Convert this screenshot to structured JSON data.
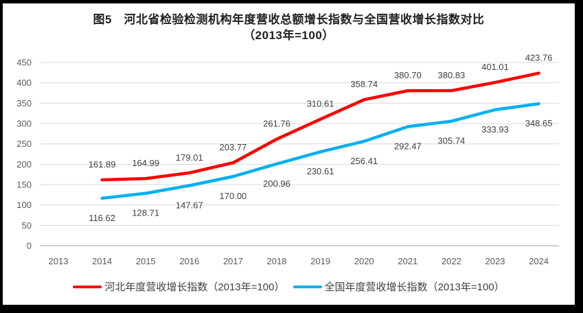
{
  "title": {
    "line1": "图5　河北省检验检测机构年度营收总额增长指数与全国营收增长指数对比",
    "line2": "（2013年=100）"
  },
  "colors": {
    "hebei_line": "#ff0000",
    "national_line": "#00b0f0",
    "gridline": "#d9d9d9",
    "axis_line": "#bfbfbf",
    "axis_label": "#595959",
    "data_label": "#3f3f3f"
  },
  "chart_data": {
    "type": "line",
    "title": "图5 河北省检验检测机构年度营收总额增长指数与全国营收增长指数对比（2013年=100）",
    "categories": [
      "2013",
      "2014",
      "2015",
      "2016",
      "2017",
      "2018",
      "2019",
      "2020",
      "2021",
      "2022",
      "2023",
      "2024"
    ],
    "yticks": [
      0,
      50,
      100,
      150,
      200,
      250,
      300,
      350,
      400,
      450
    ],
    "ylim": [
      0,
      450
    ],
    "grid": true,
    "legend_position": "bottom",
    "series": [
      {
        "id": "hebei",
        "name": "河北年度营收增长指数（2013年=100）",
        "color": "#ff0000",
        "start_year": "2014",
        "label_position": "above",
        "values": [
          161.89,
          164.99,
          179.01,
          203.77,
          261.76,
          310.61,
          358.74,
          380.7,
          380.83,
          401.01,
          423.76
        ],
        "labels": [
          "161.89",
          "164.99",
          "179.01",
          "203.77",
          "261.76",
          "310.61",
          "358.74",
          "380.70",
          "380.83",
          "401.01",
          "423.76"
        ]
      },
      {
        "id": "national",
        "name": "全国年度营收增长指数（2013年=100）",
        "color": "#00b0f0",
        "start_year": "2014",
        "label_position": "below",
        "values": [
          116.62,
          128.71,
          147.67,
          170.0,
          200.96,
          230.61,
          256.41,
          292.47,
          305.74,
          333.93,
          348.65
        ],
        "labels": [
          "116.62",
          "128.71",
          "147.67",
          "170.00",
          "200.96",
          "230.61",
          "256.41",
          "292.47",
          "305.74",
          "333.93",
          "348.65"
        ]
      }
    ]
  }
}
